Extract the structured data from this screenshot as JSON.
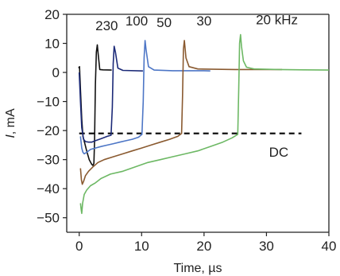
{
  "chart_data": {
    "type": "line",
    "title": "",
    "xlabel": "Time, µs",
    "ylabel_italic": "I",
    "ylabel_rest": ", mA",
    "xlim": [
      -2,
      40
    ],
    "ylim": [
      -55,
      20
    ],
    "xticks": [
      0,
      10,
      20,
      30,
      40
    ],
    "yticks": [
      20,
      10,
      0,
      -10,
      -20,
      -30,
      -40,
      -50
    ],
    "xtick_labels": [
      "0",
      "10",
      "20",
      "30",
      "40"
    ],
    "ytick_labels": [
      "20",
      "10",
      "0",
      "−10",
      "−20",
      "−30",
      "−40",
      "−50"
    ],
    "grid": false,
    "legend": "none",
    "dc_level": -21,
    "dc_label": "DC",
    "annotations": [
      {
        "text": "230",
        "x": 2.6,
        "y": 14.5
      },
      {
        "text": "100",
        "x": 7.4,
        "y": 16.2
      },
      {
        "text": "50",
        "x": 12.4,
        "y": 15.6
      },
      {
        "text": "30",
        "x": 18.8,
        "y": 16.2
      },
      {
        "text": "20 kHz",
        "x": 28.3,
        "y": 16.6
      }
    ],
    "series": [
      {
        "color": "#111111",
        "x": [
          -0.1,
          0.05,
          0.2,
          0.4,
          0.6,
          0.9,
          1.2,
          1.6,
          2.0,
          2.2,
          2.35,
          2.45,
          2.6,
          2.75,
          2.9,
          3.05,
          3.3,
          3.8,
          5.2
        ],
        "y": [
          1.5,
          2.0,
          -6,
          -16,
          -22,
          -24.5,
          -27,
          -30,
          -31.6,
          -32,
          -31.3,
          -24,
          -4,
          7,
          9.5,
          6,
          1,
          0.9,
          0.8
        ]
      },
      {
        "color": "#1c2a78",
        "x": [
          0.0,
          0.2,
          0.4,
          0.7,
          1.0,
          1.5,
          2.0,
          2.6,
          3.5,
          4.5,
          5.1,
          5.3,
          5.45,
          5.6,
          5.8,
          6.2,
          7.0,
          10.2
        ],
        "y": [
          0,
          -10,
          -19,
          -23,
          -23.8,
          -24,
          -24,
          -23.5,
          -22.8,
          -22,
          -21.6,
          -12,
          3,
          9,
          7,
          1.5,
          0.7,
          0.5
        ]
      },
      {
        "color": "#4d76c6",
        "x": [
          0.2,
          0.4,
          0.6,
          0.8,
          1.2,
          1.8,
          2.6,
          3.5,
          4.5,
          5.5,
          6.5,
          7.5,
          8.5,
          9.5,
          10.05,
          10.25,
          10.4,
          10.55,
          10.7,
          11.1,
          12.0,
          15.0,
          20.0,
          21.0
        ],
        "y": [
          -22,
          -26,
          -27.5,
          -28,
          -27.5,
          -26.5,
          -26,
          -25.5,
          -25,
          -24.5,
          -24,
          -23.5,
          -23,
          -22.3,
          -21.3,
          -10,
          5,
          11,
          8,
          2,
          0.8,
          0.6,
          0.6,
          0.5
        ]
      },
      {
        "color": "#8a5a30",
        "x": [
          0.2,
          0.35,
          0.5,
          0.7,
          1.0,
          1.5,
          2.2,
          3.0,
          4.0,
          5.5,
          7.0,
          8.5,
          10.0,
          11.5,
          13.0,
          14.5,
          15.8,
          16.4,
          16.55,
          16.7,
          16.85,
          17.1,
          17.6,
          19.0,
          25.0,
          30.0,
          32.5
        ],
        "y": [
          -33,
          -37,
          -38.5,
          -37.5,
          -35.5,
          -34,
          -32.5,
          -31,
          -30,
          -29,
          -28,
          -27,
          -26,
          -25,
          -24,
          -23,
          -22,
          -21,
          -8,
          8,
          11,
          5,
          2,
          1.2,
          1.0,
          1.0,
          1.0
        ]
      },
      {
        "color": "#6db864",
        "x": [
          0.2,
          0.3,
          0.4,
          0.55,
          0.8,
          1.2,
          1.8,
          2.6,
          3.5,
          5.0,
          7.0,
          9.0,
          11.0,
          13.0,
          15.0,
          17.0,
          19.0,
          21.0,
          23.0,
          24.5,
          25.4,
          25.55,
          25.7,
          25.85,
          26.0,
          26.3,
          26.8,
          28.0,
          32.0,
          36.0,
          40.0
        ],
        "y": [
          -45,
          -47,
          -48.5,
          -45,
          -42,
          -40.5,
          -39,
          -38,
          -36.5,
          -35,
          -34,
          -32.5,
          -31,
          -30,
          -29,
          -28,
          -27,
          -25.5,
          -24,
          -22.5,
          -21.3,
          -6,
          10,
          13,
          9,
          4,
          1.8,
          1.2,
          1.0,
          0.9,
          0.8
        ]
      }
    ]
  }
}
